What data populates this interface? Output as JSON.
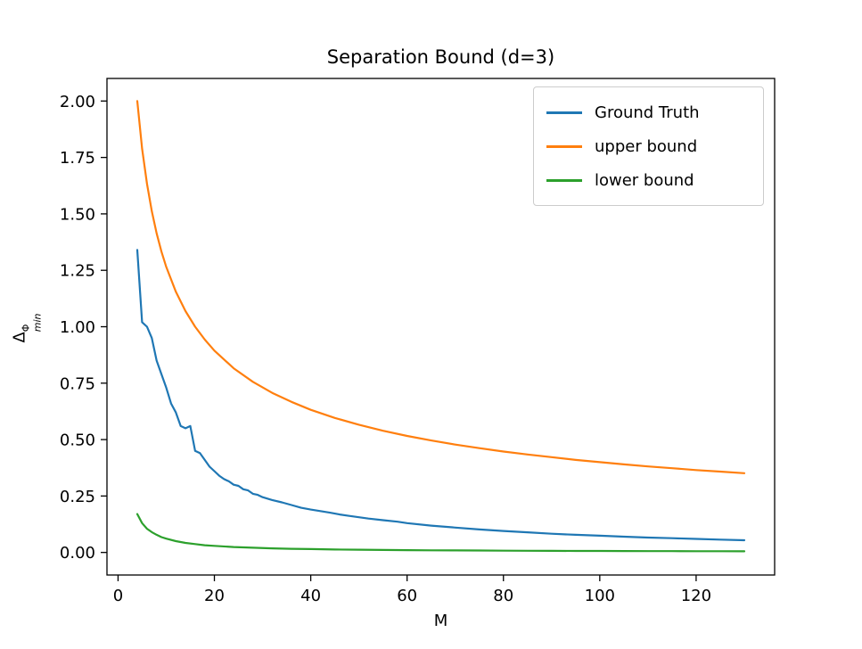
{
  "figure": {
    "background": "#ffffff",
    "axes_color": "#000000"
  },
  "chart_data": {
    "type": "line",
    "title": "Separation Bound (d=3)",
    "xlabel": "M",
    "ylabel": {
      "base": "Δ",
      "sup": "Φ",
      "sub": "min"
    },
    "xlim": [
      -2.3,
      136.3
    ],
    "ylim": [
      -0.1,
      2.1
    ],
    "xticks": [
      0,
      20,
      40,
      60,
      80,
      100,
      120
    ],
    "xtick_labels": [
      "0",
      "20",
      "40",
      "60",
      "80",
      "100",
      "120"
    ],
    "yticks": [
      0,
      0.25,
      0.5,
      0.75,
      1.0,
      1.25,
      1.5,
      1.75,
      2.0
    ],
    "ytick_labels": [
      "0.00",
      "0.25",
      "0.50",
      "0.75",
      "1.00",
      "1.25",
      "1.50",
      "1.75",
      "2.00"
    ],
    "grid": false,
    "legend_position": "upper right",
    "series": [
      {
        "name": "Ground Truth",
        "color": "#1f77b4",
        "x": [
          4,
          5,
          6,
          7,
          8,
          9,
          10,
          11,
          12,
          13,
          14,
          15,
          16,
          17,
          18,
          19,
          20,
          21,
          22,
          23,
          24,
          25,
          26,
          27,
          28,
          29,
          30,
          32,
          34,
          36,
          38,
          40,
          42,
          44,
          46,
          48,
          50,
          52,
          55,
          58,
          60,
          65,
          70,
          75,
          80,
          85,
          90,
          95,
          100,
          105,
          110,
          115,
          120,
          125,
          130
        ],
        "y": [
          1.34,
          1.02,
          1.0,
          0.95,
          0.85,
          0.79,
          0.73,
          0.66,
          0.62,
          0.56,
          0.55,
          0.56,
          0.45,
          0.44,
          0.41,
          0.38,
          0.36,
          0.34,
          0.325,
          0.315,
          0.3,
          0.295,
          0.28,
          0.275,
          0.26,
          0.255,
          0.245,
          0.232,
          0.222,
          0.21,
          0.198,
          0.19,
          0.183,
          0.176,
          0.168,
          0.162,
          0.156,
          0.15,
          0.143,
          0.136,
          0.13,
          0.119,
          0.11,
          0.102,
          0.095,
          0.089,
          0.083,
          0.078,
          0.074,
          0.07,
          0.066,
          0.063,
          0.06,
          0.057,
          0.054
        ]
      },
      {
        "name": "upper bound",
        "color": "#ff7f0e",
        "x": [
          4,
          5,
          6,
          7,
          8,
          9,
          10,
          12,
          14,
          16,
          18,
          20,
          24,
          28,
          32,
          36,
          40,
          45,
          50,
          55,
          60,
          65,
          70,
          75,
          80,
          85,
          90,
          95,
          100,
          105,
          110,
          115,
          120,
          125,
          130
        ],
        "y": [
          2.0,
          1.789,
          1.633,
          1.512,
          1.414,
          1.333,
          1.265,
          1.155,
          1.069,
          1.0,
          0.943,
          0.894,
          0.816,
          0.756,
          0.707,
          0.667,
          0.632,
          0.596,
          0.566,
          0.539,
          0.516,
          0.496,
          0.478,
          0.462,
          0.447,
          0.434,
          0.422,
          0.41,
          0.4,
          0.39,
          0.381,
          0.373,
          0.365,
          0.358,
          0.351
        ]
      },
      {
        "name": "lower bound",
        "color": "#2ca02c",
        "x": [
          4,
          5,
          6,
          7,
          8,
          9,
          10,
          12,
          14,
          16,
          18,
          20,
          24,
          28,
          32,
          36,
          40,
          45,
          50,
          55,
          60,
          65,
          70,
          75,
          80,
          85,
          90,
          95,
          100,
          105,
          110,
          115,
          120,
          125,
          130
        ],
        "y": [
          0.17,
          0.13,
          0.105,
          0.09,
          0.078,
          0.068,
          0.061,
          0.05,
          0.042,
          0.037,
          0.032,
          0.029,
          0.024,
          0.021,
          0.018,
          0.016,
          0.015,
          0.013,
          0.012,
          0.011,
          0.01,
          0.0095,
          0.009,
          0.0085,
          0.008,
          0.0075,
          0.007,
          0.0068,
          0.0065,
          0.0062,
          0.006,
          0.0058,
          0.0056,
          0.0054,
          0.0052
        ]
      }
    ]
  }
}
